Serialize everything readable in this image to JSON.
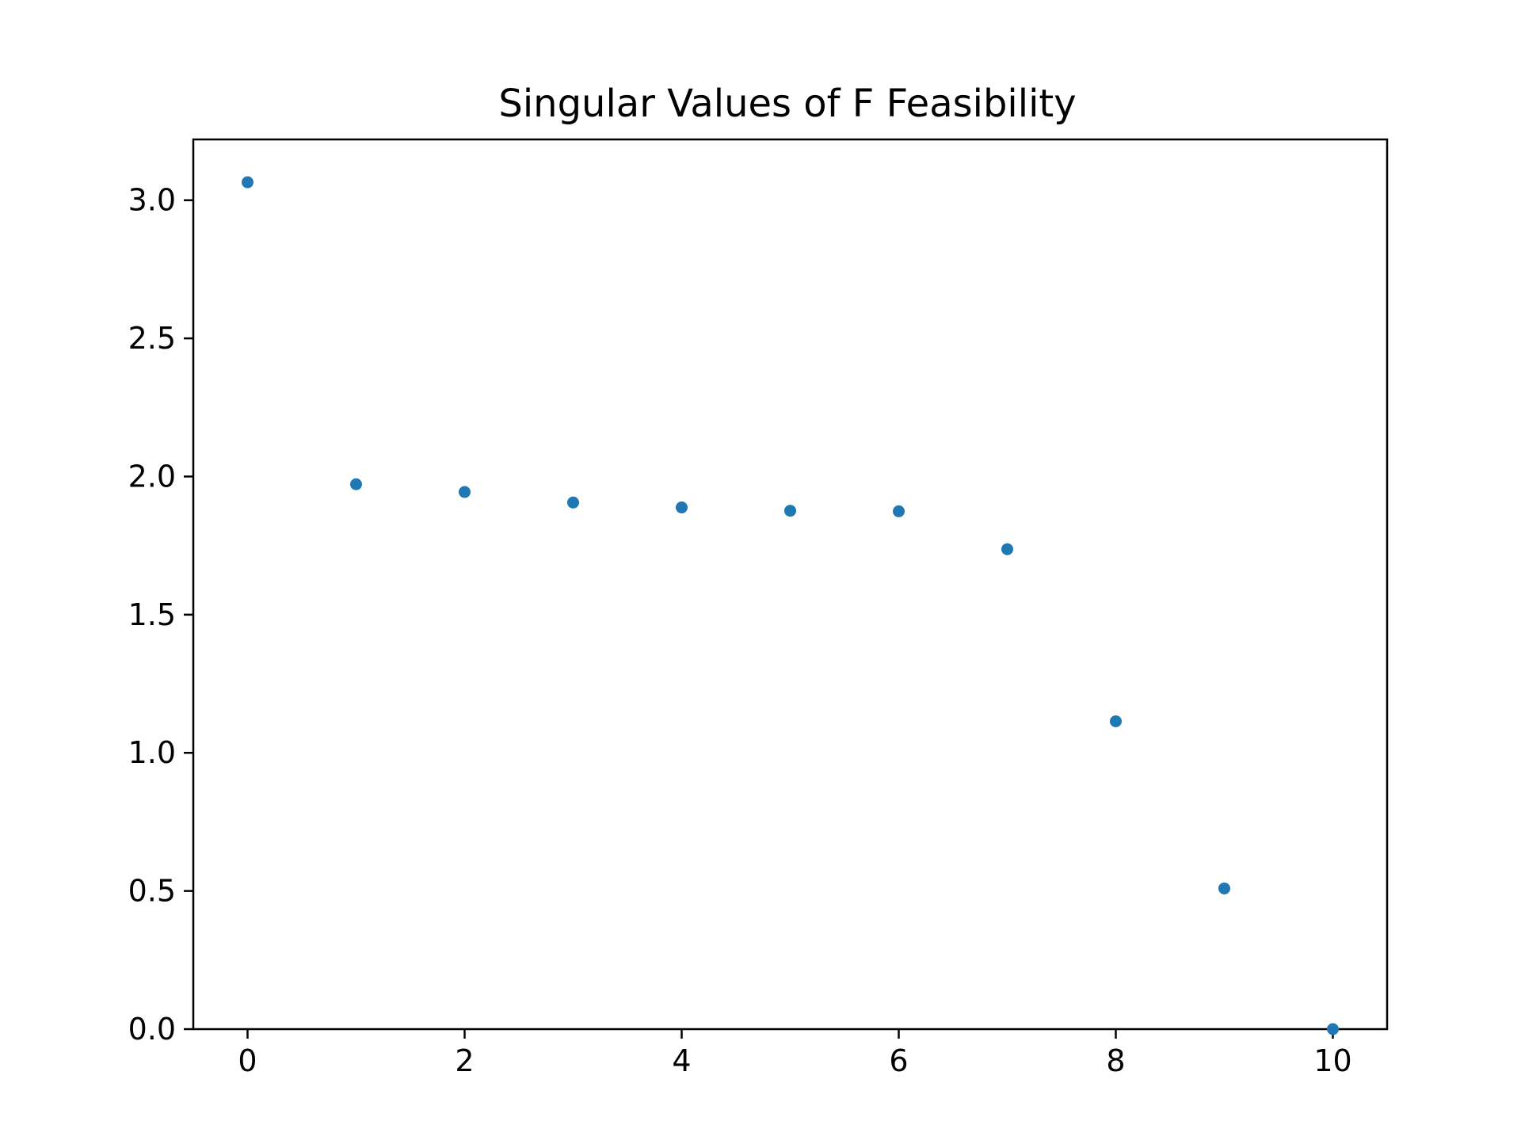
{
  "chart_data": {
    "type": "scatter",
    "title": "Singular Values of F Feasibility",
    "xlabel": "",
    "ylabel": "",
    "x": [
      0,
      1,
      2,
      3,
      4,
      5,
      6,
      7,
      8,
      9,
      10
    ],
    "series": [
      {
        "values": [
          3.065,
          1.972,
          1.944,
          1.906,
          1.888,
          1.876,
          1.874,
          1.737,
          1.114,
          0.509,
          0.0
        ],
        "color": "#1f77b4"
      }
    ],
    "xlim": [
      -0.5,
      10.5
    ],
    "ylim": [
      0,
      3.22
    ],
    "xticks": [
      0,
      2,
      4,
      6,
      8,
      10
    ],
    "xtick_labels": [
      "0",
      "2",
      "4",
      "6",
      "8",
      "10"
    ],
    "yticks": [
      0.0,
      0.5,
      1.0,
      1.5,
      2.0,
      2.5,
      3.0
    ],
    "ytick_labels": [
      "0.0",
      "0.5",
      "1.0",
      "1.5",
      "2.0",
      "2.5",
      "3.0"
    ],
    "grid": false,
    "legend": "none"
  }
}
